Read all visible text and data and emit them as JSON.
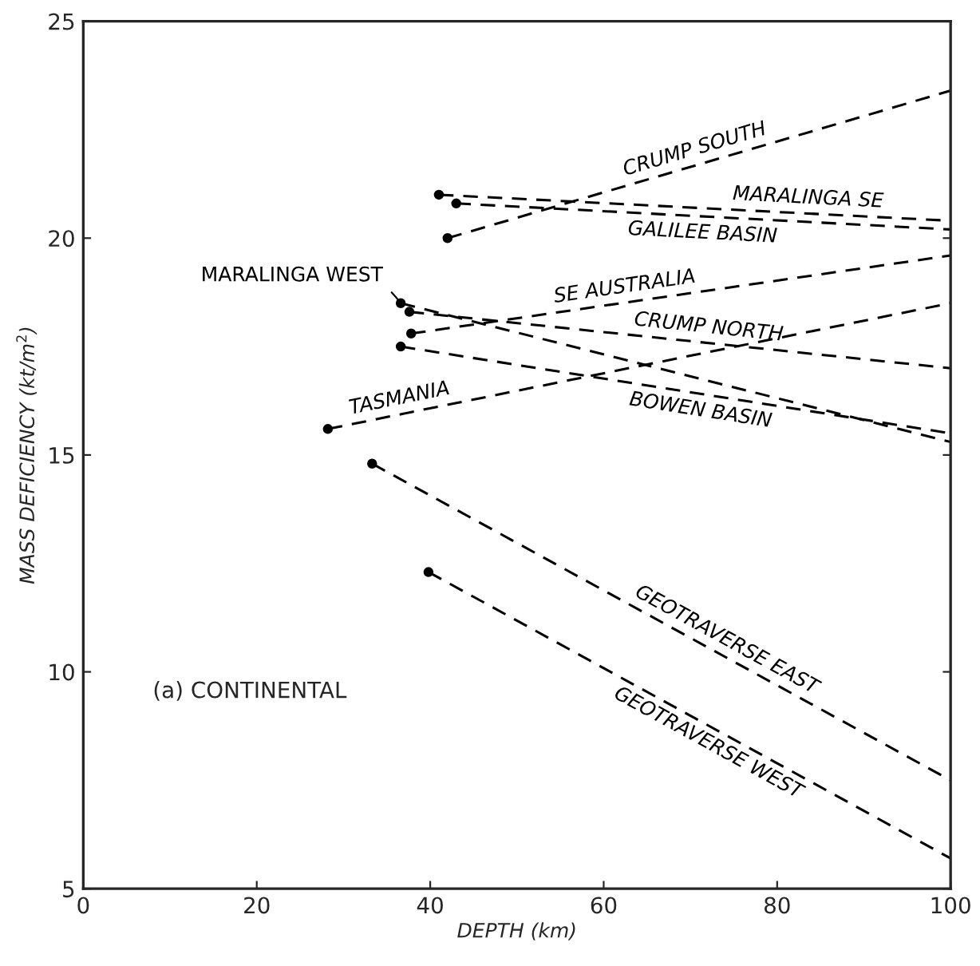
{
  "chart_data": {
    "type": "line",
    "xlabel": "DEPTH (km)",
    "ylabel": "MASS DEFICIENCY (kt/m$^{2}$)",
    "xlim": [
      0,
      100
    ],
    "xticks": [
      0,
      20,
      40,
      60,
      80,
      100
    ],
    "ylim": [
      5,
      25
    ],
    "yticks": [
      5,
      10,
      15,
      20,
      25
    ],
    "grid": false,
    "marker": "circle",
    "line_style": "dashed",
    "annotations": [
      "(a) CONTINENTAL"
    ],
    "series": [
      {
        "name": "CRUMP SOUTH",
        "color": "#000000",
        "x": [
          42,
          100
        ],
        "values": [
          20.0,
          23.4
        ]
      },
      {
        "name": "MARALINGA SE",
        "color": "#000000",
        "x": [
          41,
          100
        ],
        "values": [
          21.0,
          20.4
        ]
      },
      {
        "name": "GALILEE BASIN",
        "color": "#000000",
        "x": [
          43,
          100
        ],
        "values": [
          20.8,
          20.2
        ]
      },
      {
        "name": "MARALINGA WEST",
        "color": "#000000",
        "x": [
          36.6,
          100
        ],
        "values": [
          18.5,
          15.3
        ]
      },
      {
        "name": "SE AUSTRALIA",
        "color": "#000000",
        "x": [
          37.8,
          100
        ],
        "values": [
          17.8,
          19.6
        ]
      },
      {
        "name": "CRUMP NORTH",
        "color": "#000000",
        "x": [
          37.6,
          100
        ],
        "values": [
          18.3,
          17.0
        ]
      },
      {
        "name": "BOWEN BASIN",
        "color": "#000000",
        "x": [
          36.6,
          100
        ],
        "values": [
          17.5,
          15.5
        ]
      },
      {
        "name": "TASMANIA",
        "color": "#000000",
        "x": [
          28.2,
          100
        ],
        "values": [
          15.6,
          18.5
        ]
      },
      {
        "name": "GEOTRAVERSE EAST",
        "color": "#000000",
        "x": [
          33.3,
          100
        ],
        "values": [
          14.8,
          7.5
        ]
      },
      {
        "name": "GEOTRAVERSE WEST",
        "color": "#000000",
        "x": [
          39.8,
          100
        ],
        "values": [
          12.3,
          5.7
        ]
      }
    ]
  }
}
